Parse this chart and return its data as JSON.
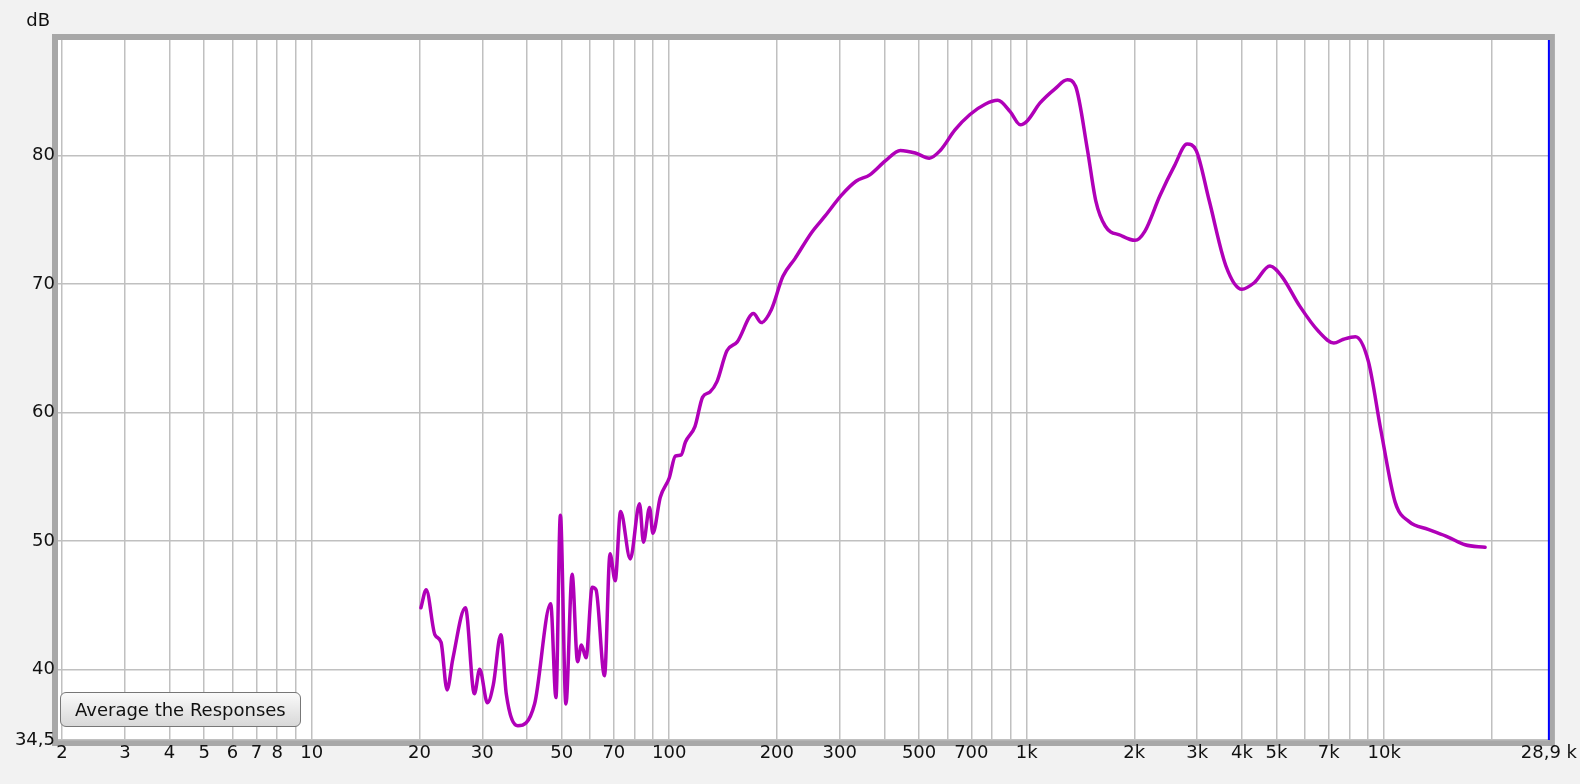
{
  "chart_data": {
    "type": "line",
    "ylabel": "dB",
    "annotations": [
      "Average the Responses"
    ],
    "log": "x",
    "grid": true,
    "legend": false,
    "marker": "none",
    "line_style": "solid",
    "xlim": [
      1.95,
      28900
    ],
    "ylim": [
      34.5,
      89
    ],
    "xticks": [
      2,
      3,
      4,
      5,
      6,
      7,
      8,
      {
        "value": 9,
        "label": null
      },
      10,
      20,
      30,
      {
        "value": 40,
        "label": null
      },
      50,
      {
        "value": 60,
        "label": null
      },
      70,
      {
        "value": 80,
        "label": null
      },
      {
        "value": 90,
        "label": null
      },
      100,
      200,
      300,
      {
        "value": 400,
        "label": null
      },
      500,
      {
        "value": 600,
        "label": null
      },
      700,
      {
        "value": 800,
        "label": null
      },
      {
        "value": 900,
        "label": null
      },
      {
        "value": 1000,
        "label": "1k"
      },
      {
        "value": 2000,
        "label": "2k"
      },
      {
        "value": 3000,
        "label": "3k"
      },
      {
        "value": 4000,
        "label": "4k"
      },
      {
        "value": 5000,
        "label": "5k"
      },
      {
        "value": 6000,
        "label": null
      },
      {
        "value": 7000,
        "label": "7k"
      },
      {
        "value": 8000,
        "label": null
      },
      {
        "value": 9000,
        "label": null
      },
      {
        "value": 10000,
        "label": "10k"
      },
      {
        "value": 20000,
        "label": null
      },
      {
        "value": 28900,
        "label": "28,9 k"
      }
    ],
    "yticks": [
      {
        "value": 34.5,
        "label": "34,5"
      },
      40,
      50,
      60,
      70,
      80
    ],
    "ref_lines": [
      {
        "axis": "x",
        "value": 28900,
        "color": "#0000ff"
      }
    ],
    "series": [
      {
        "color": "#b000b8",
        "x": [
          20.2,
          20.9,
          22.1,
          23.0,
          23.9,
          24.8,
          26.9,
          28.5,
          29.5,
          31.0,
          32.2,
          33.8,
          35.0,
          37.7,
          42.0,
          46.6,
          48.2,
          49.6,
          51.4,
          53.5,
          55.4,
          56.8,
          58.5,
          60.9,
          62.4,
          65.9,
          68.3,
          70.6,
          73.1,
          77.8,
          82.6,
          84.7,
          88.1,
          90,
          94.4,
          100,
          104,
          108,
          111,
          118,
          124,
          130,
          136,
          145,
          155,
          172,
          181,
          193,
          208,
          225,
          250,
          273,
          303,
          333,
          364,
          403,
          443,
          488,
          534,
          573,
          630,
          694,
          765,
          830,
          900,
          960,
          1003,
          1090,
          1200,
          1300,
          1370,
          1480,
          1560,
          1660,
          1830,
          2010,
          2140,
          2360,
          2590,
          2810,
          2980,
          3240,
          3610,
          4000,
          4330,
          4790,
          5170,
          5800,
          6560,
          7230,
          7700,
          8310,
          9030,
          9810,
          10740,
          11750,
          13280,
          15100,
          16840,
          19160
        ],
        "values": [
          44.8,
          46.2,
          42.7,
          42.1,
          38.4,
          40.8,
          44.8,
          38.1,
          40.0,
          37.4,
          38.8,
          42.7,
          38.1,
          35.6,
          37.3,
          45.1,
          37.8,
          52.0,
          37.3,
          47.4,
          40.6,
          41.9,
          40.9,
          46.4,
          46.2,
          39.5,
          49.0,
          46.9,
          52.3,
          48.6,
          52.9,
          49.9,
          52.6,
          50.6,
          53.4,
          54.9,
          56.6,
          56.7,
          57.7,
          58.9,
          61.2,
          61.6,
          62.4,
          64.8,
          65.5,
          67.7,
          67.0,
          68.0,
          70.6,
          72.0,
          74.0,
          75.3,
          76.9,
          78.0,
          78.5,
          79.6,
          80.4,
          80.2,
          79.8,
          80.4,
          82.0,
          83.2,
          84.0,
          84.3,
          83.4,
          82.4,
          82.7,
          84.1,
          85.2,
          85.9,
          85.4,
          80.4,
          76.5,
          74.5,
          73.8,
          73.4,
          74.1,
          76.9,
          79.2,
          80.9,
          80.4,
          76.5,
          71.4,
          69.6,
          70.1,
          71.4,
          70.6,
          68.3,
          66.3,
          65.4,
          65.7,
          65.9,
          64.0,
          58.5,
          53.0,
          51.5,
          50.9,
          50.3,
          49.7,
          49.5
        ]
      }
    ]
  }
}
